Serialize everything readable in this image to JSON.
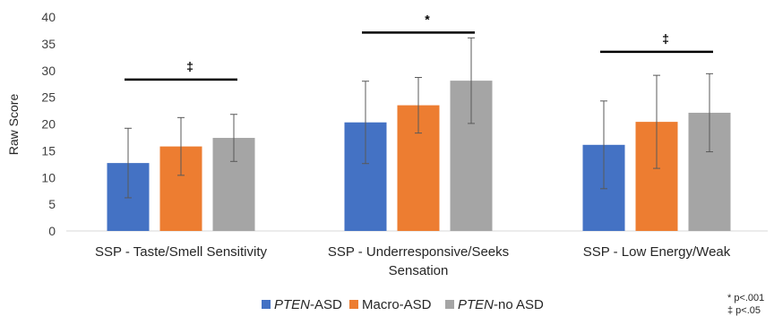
{
  "chart_data": {
    "type": "bar",
    "title": "",
    "xlabel": "",
    "ylabel": "Raw Score",
    "ylim": [
      0,
      40
    ],
    "yticks": [
      0,
      5,
      10,
      15,
      20,
      25,
      30,
      35,
      40
    ],
    "grid": false,
    "legend_position": "bottom",
    "categories": [
      [
        "SSP - Taste/Smell Sensitivity"
      ],
      [
        "SSP - Underresponsive/Seeks",
        "Sensation"
      ],
      [
        "SSP - Low Energy/Weak"
      ]
    ],
    "series": [
      {
        "name_parts": [
          {
            "text": "PTEN",
            "italic": true
          },
          {
            "text": "-ASD",
            "italic": false
          }
        ],
        "color": "#4472C4",
        "values": [
          12.7,
          20.3,
          16.1
        ],
        "error": [
          6.5,
          7.7,
          8.2
        ]
      },
      {
        "name_parts": [
          {
            "text": "Macro-ASD",
            "italic": false
          }
        ],
        "color": "#ED7D31",
        "values": [
          15.8,
          23.5,
          20.4
        ],
        "error": [
          5.4,
          5.2,
          8.7
        ]
      },
      {
        "name_parts": [
          {
            "text": "PTEN",
            "italic": true
          },
          {
            "text": "-no ASD",
            "italic": false
          }
        ],
        "color": "#A5A5A5",
        "values": [
          17.4,
          28.1,
          22.1
        ],
        "error": [
          4.4,
          8.0,
          7.3
        ]
      }
    ],
    "significance": [
      {
        "category_index": 0,
        "symbol": "‡",
        "bar_y": 28.3
      },
      {
        "category_index": 1,
        "symbol": "*",
        "bar_y": 37.1
      },
      {
        "category_index": 2,
        "symbol": "‡",
        "bar_y": 33.5
      }
    ],
    "footnotes": [
      "* p<.001",
      "‡ p<.05"
    ]
  }
}
